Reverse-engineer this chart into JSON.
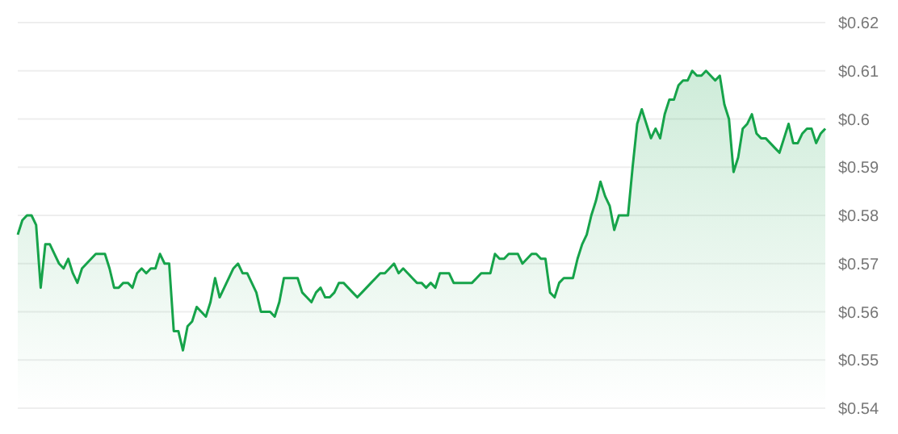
{
  "chart_data": {
    "type": "area",
    "color": "#16a34a",
    "grid": "y",
    "ylim": [
      0.54,
      0.62
    ],
    "yticks": [
      {
        "value": 0.54,
        "label": "$0.54"
      },
      {
        "value": 0.55,
        "label": "$0.55"
      },
      {
        "value": 0.56,
        "label": "$0.56"
      },
      {
        "value": 0.57,
        "label": "$0.57"
      },
      {
        "value": 0.58,
        "label": "$0.58"
      },
      {
        "value": 0.59,
        "label": "$0.59"
      },
      {
        "value": 0.6,
        "label": "$0.6"
      },
      {
        "value": 0.61,
        "label": "$0.61"
      },
      {
        "value": 0.62,
        "label": "$0.62"
      }
    ],
    "tick_labels": "y",
    "values": [
      0.576,
      0.579,
      0.58,
      0.58,
      0.578,
      0.565,
      0.574,
      0.574,
      0.572,
      0.57,
      0.569,
      0.571,
      0.568,
      0.566,
      0.569,
      0.57,
      0.571,
      0.572,
      0.572,
      0.572,
      0.569,
      0.565,
      0.565,
      0.566,
      0.566,
      0.565,
      0.568,
      0.569,
      0.568,
      0.569,
      0.569,
      0.572,
      0.57,
      0.57,
      0.556,
      0.556,
      0.552,
      0.557,
      0.558,
      0.561,
      0.56,
      0.559,
      0.562,
      0.567,
      0.563,
      0.565,
      0.567,
      0.569,
      0.57,
      0.568,
      0.568,
      0.566,
      0.564,
      0.56,
      0.56,
      0.56,
      0.559,
      0.562,
      0.567,
      0.567,
      0.567,
      0.567,
      0.564,
      0.563,
      0.562,
      0.564,
      0.565,
      0.563,
      0.563,
      0.564,
      0.566,
      0.566,
      0.565,
      0.564,
      0.563,
      0.564,
      0.565,
      0.566,
      0.567,
      0.568,
      0.568,
      0.569,
      0.57,
      0.568,
      0.569,
      0.568,
      0.567,
      0.566,
      0.566,
      0.565,
      0.566,
      0.565,
      0.568,
      0.568,
      0.568,
      0.566,
      0.566,
      0.566,
      0.566,
      0.566,
      0.567,
      0.568,
      0.568,
      0.568,
      0.572,
      0.571,
      0.571,
      0.572,
      0.572,
      0.572,
      0.57,
      0.571,
      0.572,
      0.572,
      0.571,
      0.571,
      0.564,
      0.563,
      0.566,
      0.567,
      0.567,
      0.567,
      0.571,
      0.574,
      0.576,
      0.58,
      0.583,
      0.587,
      0.584,
      0.582,
      0.577,
      0.58,
      0.58,
      0.58,
      0.59,
      0.599,
      0.602,
      0.599,
      0.596,
      0.598,
      0.596,
      0.601,
      0.604,
      0.604,
      0.607,
      0.608,
      0.608,
      0.61,
      0.609,
      0.609,
      0.61,
      0.609,
      0.608,
      0.609,
      0.603,
      0.6,
      0.589,
      0.592,
      0.598,
      0.599,
      0.601,
      0.597,
      0.596,
      0.596,
      0.595,
      0.594,
      0.593,
      0.596,
      0.599,
      0.595,
      0.595,
      0.597,
      0.598,
      0.598,
      0.595,
      0.597,
      0.598
    ],
    "categories": [
      null,
      null,
      null,
      null,
      null,
      null,
      null,
      null,
      null,
      null,
      null,
      null,
      null,
      null,
      null,
      null,
      null,
      null,
      null,
      null,
      null,
      null,
      null,
      null,
      null,
      null,
      null,
      null,
      null,
      null,
      null,
      null,
      null,
      null,
      null,
      null,
      null,
      null,
      null,
      null,
      null,
      null,
      null,
      null,
      null,
      null,
      null,
      null,
      null,
      null,
      null,
      null,
      null,
      null,
      null,
      null,
      null,
      null,
      null,
      null,
      null,
      null,
      null,
      null,
      null,
      null,
      null,
      null,
      null,
      null,
      null,
      null,
      null,
      null,
      null,
      null,
      null,
      null,
      null,
      null,
      null,
      null,
      null,
      null,
      null,
      null,
      null,
      null,
      null,
      null,
      null,
      null,
      null,
      null,
      null,
      null,
      null,
      null,
      null,
      null,
      null,
      null,
      null,
      null,
      null,
      null,
      null,
      null,
      null,
      null,
      null,
      null,
      null,
      null,
      null,
      null,
      null,
      null,
      null,
      null,
      null,
      null,
      null,
      null,
      null,
      null,
      null,
      null,
      null,
      null,
      null,
      null,
      null,
      null,
      null,
      null,
      null,
      null,
      null,
      null,
      null,
      null,
      null,
      null,
      null,
      null,
      null,
      null,
      null,
      null,
      null,
      null,
      null,
      null,
      null,
      null,
      null,
      null,
      null,
      null,
      null,
      null,
      null,
      null,
      null,
      null,
      null,
      null,
      null,
      null,
      null,
      null,
      null,
      null,
      null,
      null,
      null
    ]
  }
}
